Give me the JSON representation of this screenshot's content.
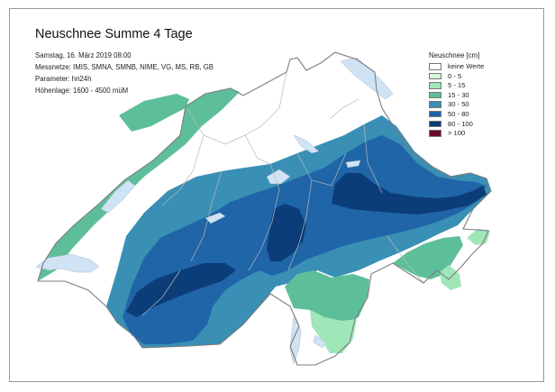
{
  "title": "Neuschnee Summe 4 Tage",
  "meta": {
    "date": "Samstag, 16. März 2019 08:00",
    "networks": "Messnetze: IMIS, SMNA, SMNB, NIME, VG, MS, RB, GB",
    "parameter": "Parameter: hn24h",
    "altitude": "Höhenlage: 1600 - 4500 müM"
  },
  "legend": {
    "title": "Neuschnee [cm]",
    "items": [
      {
        "label": "keine Werte",
        "color": "#ffffff"
      },
      {
        "label": "0 - 5",
        "color": "#d9f5d9"
      },
      {
        "label": "5 - 15",
        "color": "#9fe6b9"
      },
      {
        "label": "15 - 30",
        "color": "#5dbf9a"
      },
      {
        "label": "30 - 50",
        "color": "#3a8fb5"
      },
      {
        "label": "50 - 80",
        "color": "#1f65a8"
      },
      {
        "label": "80 - 100",
        "color": "#0b3d78"
      },
      {
        "label": "> 100",
        "color": "#6a0a2e"
      }
    ]
  },
  "colors": {
    "none": "#ffffff",
    "c0_5": "#d9f5d9",
    "c5_15": "#9fe6b9",
    "c15_30": "#5dbf9a",
    "c30_50": "#3a8fb5",
    "c50_80": "#1f65a8",
    "c80_100": "#0b3d78",
    "lake": "#cfe3f5",
    "border": "#7d7d7d"
  }
}
